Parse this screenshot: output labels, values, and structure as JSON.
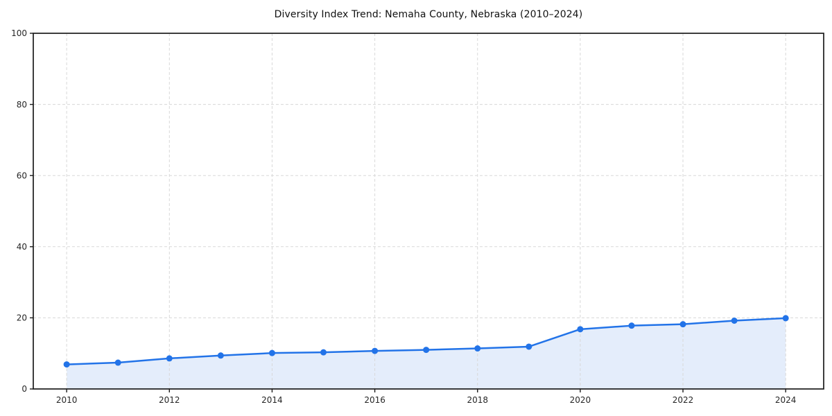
{
  "chart_data": {
    "type": "area",
    "title": "Diversity Index Trend: Nemaha County, Nebraska (2010–2024)",
    "x": [
      2010,
      2011,
      2012,
      2013,
      2014,
      2015,
      2016,
      2017,
      2018,
      2019,
      2020,
      2021,
      2022,
      2023,
      2024
    ],
    "series": [
      {
        "name": "Diversity Index",
        "values": [
          6.9,
          7.4,
          8.6,
          9.4,
          10.1,
          10.3,
          10.7,
          11.0,
          11.4,
          11.9,
          16.8,
          17.8,
          18.2,
          19.2,
          19.9
        ]
      }
    ],
    "xlabel": "",
    "ylabel": "",
    "xlim": [
      2009.35,
      2024.74
    ],
    "ylim": [
      0,
      100
    ],
    "xticks": [
      2010,
      2012,
      2014,
      2016,
      2018,
      2020,
      2022,
      2024
    ],
    "yticks": [
      0,
      20,
      40,
      60,
      80,
      100
    ],
    "grid": true,
    "grid_style": "dashed",
    "legend": false,
    "marker": "circle",
    "colors": {
      "line": "#2273e8",
      "marker": "#2273e8",
      "fill": "#e4edfb",
      "grid": "#d8d8d8",
      "axis": "#1a1a1a",
      "tick_text": "#262626",
      "title_text": "#111111",
      "background": "#ffffff"
    }
  }
}
